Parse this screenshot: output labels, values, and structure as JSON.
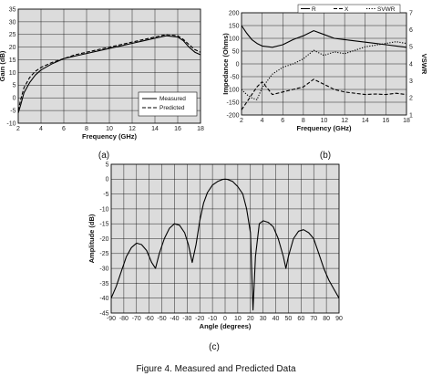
{
  "captions": {
    "a": "(a)",
    "b": "(b)",
    "c": "(c)",
    "figure": "Figure 4. Measured and Predicted Data"
  },
  "colors": {
    "plot_bg": "#dcdcdc",
    "grid": "#111111",
    "trace": "#000000"
  },
  "chart_data": [
    {
      "id": "a",
      "type": "line",
      "title": "",
      "xlabel": "Frequency (GHz)",
      "ylabel": "Gain (dB)",
      "xlim": [
        2,
        18
      ],
      "ylim": [
        -10,
        35
      ],
      "xticks": [
        2,
        4,
        6,
        8,
        10,
        12,
        14,
        16,
        18
      ],
      "yticks": [
        -10,
        -5,
        0,
        5,
        10,
        15,
        20,
        25,
        30,
        35
      ],
      "grid": true,
      "legend": "bottom-right",
      "series": [
        {
          "name": "Measured",
          "style": "solid",
          "x": [
            2.0,
            2.2,
            2.5,
            3,
            3.5,
            4,
            5,
            6,
            7,
            8,
            9,
            10,
            11,
            12,
            13,
            14,
            15,
            16,
            16.5,
            17,
            17.5,
            18
          ],
          "y": [
            -6,
            -3,
            2,
            6,
            9,
            11,
            13.5,
            15.5,
            16.5,
            17.5,
            18.5,
            19.5,
            20.5,
            21.5,
            22.5,
            23.5,
            24.5,
            24,
            22.5,
            20,
            18,
            17
          ]
        },
        {
          "name": "Predicted",
          "style": "dashed",
          "x": [
            2.0,
            2.2,
            2.5,
            3,
            3.5,
            4,
            5,
            6,
            7,
            8,
            9,
            10,
            11,
            12,
            13,
            14,
            15,
            16,
            16.5,
            17,
            17.5,
            18
          ],
          "y": [
            -5,
            -1,
            4,
            8,
            10.5,
            12,
            14,
            15.5,
            17,
            18,
            19,
            20,
            21,
            22,
            23,
            24,
            25,
            24.5,
            23,
            21,
            19,
            18
          ]
        }
      ]
    },
    {
      "id": "b",
      "type": "line",
      "title": "",
      "xlabel": "Frequency (GHz)",
      "ylabel": "Impedance (Ohms)",
      "y2label": "VSWR",
      "xlim": [
        2,
        18
      ],
      "ylim": [
        -200,
        200
      ],
      "y2lim": [
        1,
        7
      ],
      "xticks": [
        2,
        4,
        6,
        8,
        10,
        12,
        14,
        16,
        18
      ],
      "yticks": [
        -200,
        -150,
        -100,
        -50,
        0,
        50,
        100,
        150,
        200
      ],
      "y2ticks": [
        1,
        2,
        3,
        4,
        5,
        6,
        7
      ],
      "grid": true,
      "legend": "top",
      "legend_entries": [
        "R",
        "X",
        "SVWR"
      ],
      "series": [
        {
          "name": "R",
          "style": "solid",
          "axis": "left",
          "x": [
            2,
            2.5,
            3,
            3.5,
            4,
            5,
            6,
            7,
            8,
            9,
            10,
            11,
            12,
            13,
            14,
            15,
            16,
            17,
            18
          ],
          "y": [
            150,
            120,
            95,
            80,
            70,
            65,
            75,
            95,
            110,
            130,
            115,
            100,
            95,
            90,
            85,
            80,
            75,
            70,
            65
          ]
        },
        {
          "name": "X",
          "style": "dashed",
          "axis": "left",
          "x": [
            2,
            2.5,
            3,
            3.5,
            4,
            5,
            6,
            7,
            8,
            9,
            10,
            11,
            12,
            13,
            14,
            15,
            16,
            17,
            18
          ],
          "y": [
            -180,
            -150,
            -120,
            -90,
            -70,
            -120,
            -110,
            -100,
            -90,
            -60,
            -80,
            -100,
            -110,
            -115,
            -120,
            -118,
            -120,
            -115,
            -120
          ]
        },
        {
          "name": "SVWR",
          "style": "dotted",
          "axis": "right",
          "x": [
            2,
            2.5,
            3,
            3.5,
            4,
            5,
            6,
            7,
            8,
            9,
            10,
            11,
            12,
            13,
            14,
            15,
            16,
            17,
            18
          ],
          "y": [
            2.5,
            2.2,
            2.0,
            1.9,
            2.6,
            3.4,
            3.8,
            4.0,
            4.3,
            4.8,
            4.5,
            4.7,
            4.6,
            4.8,
            5.0,
            5.1,
            5.2,
            5.3,
            5.2
          ]
        }
      ]
    },
    {
      "id": "c",
      "type": "line",
      "title": "",
      "xlabel": "Angle (degrees)",
      "ylabel": "Amplitude (dB)",
      "xlim": [
        -90,
        90
      ],
      "ylim": [
        -45,
        5
      ],
      "xticks": [
        -90,
        -80,
        -70,
        -60,
        -50,
        -40,
        -30,
        -20,
        -10,
        0,
        10,
        20,
        30,
        40,
        50,
        60,
        70,
        80,
        90
      ],
      "yticks": [
        -45,
        -40,
        -35,
        -30,
        -25,
        -20,
        -15,
        -10,
        -5,
        0,
        5
      ],
      "grid": true,
      "series": [
        {
          "name": "",
          "style": "solid",
          "x": [
            -90,
            -86,
            -82,
            -78,
            -74,
            -70,
            -66,
            -62,
            -58,
            -55,
            -52,
            -48,
            -44,
            -40,
            -36,
            -32,
            -29,
            -26,
            -23,
            -20,
            -17,
            -14,
            -10,
            -6,
            -2,
            0,
            2,
            6,
            10,
            14,
            17,
            20,
            22,
            24,
            27,
            30,
            34,
            38,
            42,
            46,
            48,
            50,
            54,
            58,
            62,
            66,
            70,
            74,
            78,
            82,
            86,
            90
          ],
          "y": [
            -40,
            -36,
            -31,
            -26,
            -23,
            -21.5,
            -22,
            -24,
            -28,
            -30,
            -25,
            -20,
            -16.5,
            -15,
            -15.5,
            -18,
            -22,
            -28,
            -22,
            -14,
            -8,
            -4.5,
            -2,
            -0.8,
            -0.1,
            0,
            -0.1,
            -0.8,
            -2.5,
            -5,
            -10,
            -18,
            -44,
            -26,
            -15,
            -14,
            -14.5,
            -16,
            -20,
            -26,
            -30,
            -26,
            -20,
            -17.5,
            -17,
            -18,
            -20,
            -25,
            -30,
            -34,
            -37,
            -40
          ]
        }
      ]
    }
  ]
}
